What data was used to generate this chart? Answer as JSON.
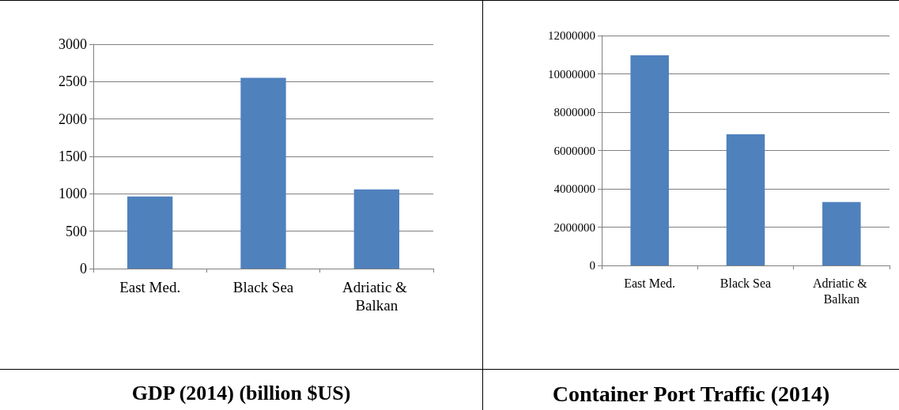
{
  "chart_data": [
    {
      "type": "bar",
      "title": "GDP (2014) (billion $US)",
      "categories": [
        "East Med.",
        "Black Sea",
        "Adriatic & Balkan"
      ],
      "values": [
        965,
        2550,
        1060
      ],
      "color": "#4f81bd",
      "ylim": [
        0,
        3000
      ],
      "yticks": [
        0,
        500,
        1000,
        1500,
        2000,
        2500,
        3000
      ],
      "grid": "y"
    },
    {
      "type": "bar",
      "title": "Container Port Traffic (2014)",
      "categories": [
        "East Med.",
        "Black Sea",
        "Adriatic & Balkan"
      ],
      "values": [
        10970000,
        6850000,
        3310000
      ],
      "color": "#4f81bd",
      "ylim": [
        0,
        12000000
      ],
      "yticks": [
        0,
        2000000,
        4000000,
        6000000,
        8000000,
        10000000,
        12000000
      ],
      "grid": "y"
    }
  ]
}
